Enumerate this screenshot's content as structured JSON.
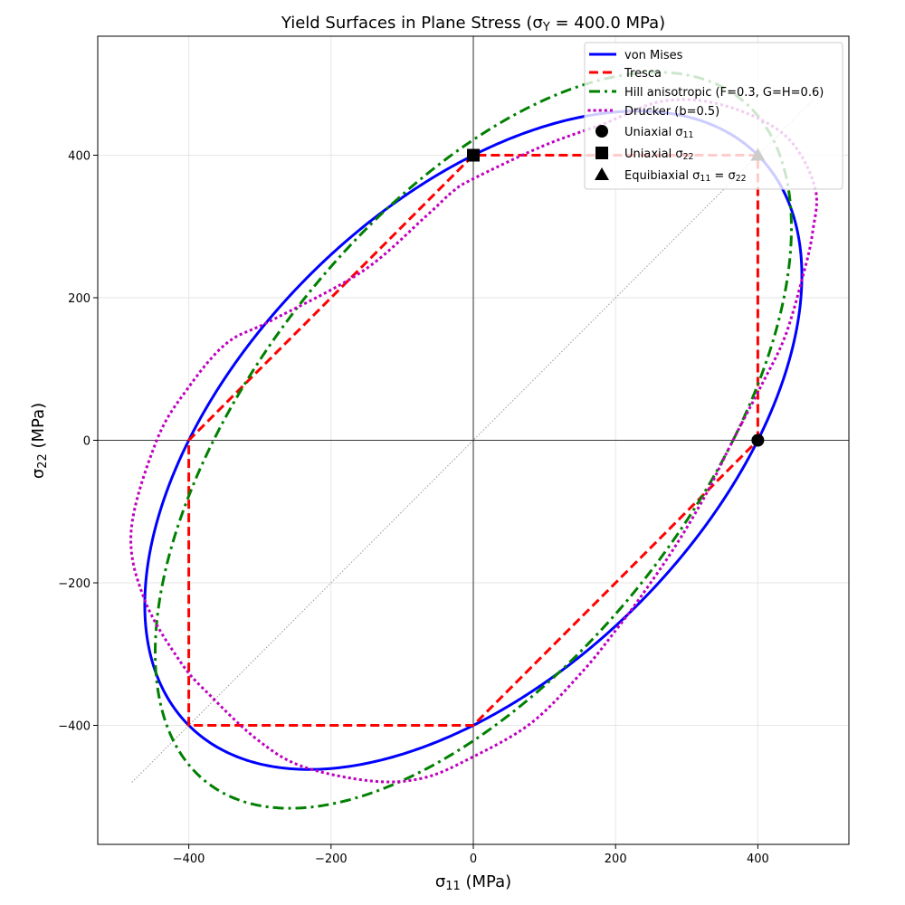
{
  "chart_data": {
    "type": "line",
    "title": [
      {
        "t": "Yield Surfaces in Plane Stress (σ"
      },
      {
        "t": "Y",
        "sub": true
      },
      {
        "t": " = 400.0 MPa)"
      }
    ],
    "xlabel": [
      {
        "t": "σ"
      },
      {
        "t": "11",
        "sub": true
      },
      {
        "t": " (MPa)"
      }
    ],
    "ylabel": [
      {
        "t": "σ"
      },
      {
        "t": "22",
        "sub": true
      },
      {
        "t": " (MPa)"
      }
    ],
    "xlim": [
      -528,
      528
    ],
    "ylim": [
      -567,
      567
    ],
    "xticks": [
      -400,
      -200,
      0,
      200,
      400
    ],
    "yticks": [
      -400,
      -200,
      0,
      200,
      400
    ],
    "xtick_labels": [
      "−400",
      "−200",
      "0",
      "200",
      "400"
    ],
    "ytick_labels": [
      "−400",
      "−200",
      "0",
      "200",
      "400"
    ],
    "grid": true,
    "legend_position": "top-right",
    "sigma_Y": 400.0,
    "reference_line": {
      "from": [
        -480,
        -480
      ],
      "to": [
        480,
        480
      ],
      "color": "#999999"
    },
    "series": [
      {
        "name": "von Mises",
        "color": "#0000ff",
        "style": "solid",
        "label": [
          {
            "t": "von Mises"
          }
        ],
        "criterion": "s11^2 - s11*s22 + s22^2 = sigma_Y^2"
      },
      {
        "name": "Tresca",
        "color": "#ff0000",
        "style": "dashed",
        "label": [
          {
            "t": "Tresca"
          }
        ],
        "points": [
          [
            400,
            0
          ],
          [
            400,
            400
          ],
          [
            0,
            400
          ],
          [
            -400,
            0
          ],
          [
            -400,
            -400
          ],
          [
            0,
            -400
          ],
          [
            400,
            0
          ]
        ]
      },
      {
        "name": "Hill anisotropic (F=0.3, G=H=0.6)",
        "color": "#008000",
        "style": "dashdot",
        "label": [
          {
            "t": "Hill anisotropic (F=0.3, G=H=0.6)"
          }
        ],
        "params": {
          "F": 0.3,
          "G": 0.6,
          "H": 0.6
        }
      },
      {
        "name": "Drucker (b=0.5)",
        "color": "#bf00bf",
        "style": "dotted",
        "label": [
          {
            "t": "Drucker (b=0.5)"
          }
        ],
        "points": [
          [
            378,
            25
          ],
          [
            407,
            81
          ],
          [
            438,
            145
          ],
          [
            463,
            229
          ],
          [
            477,
            292
          ],
          [
            480,
            356
          ],
          [
            438,
            428
          ],
          [
            352,
            470
          ],
          [
            267,
            476
          ],
          [
            183,
            444
          ],
          [
            98,
            413
          ],
          [
            0,
            367
          ],
          [
            -29,
            349
          ],
          [
            -67,
            314
          ],
          [
            -156,
            237
          ],
          [
            -284,
            168
          ],
          [
            -347,
            136
          ],
          [
            -402,
            72
          ],
          [
            -445,
            0
          ],
          [
            -481,
            -127
          ],
          [
            -462,
            -224
          ],
          [
            -411,
            -312
          ],
          [
            -369,
            -359
          ],
          [
            -305,
            -419
          ],
          [
            -242,
            -457
          ],
          [
            -144,
            -478
          ],
          [
            -71,
            -474
          ],
          [
            -4,
            -446
          ],
          [
            81,
            -397
          ],
          [
            153,
            -325
          ],
          [
            200,
            -267
          ],
          [
            238,
            -216
          ],
          [
            285,
            -147
          ],
          [
            327,
            -76
          ],
          [
            359,
            -12
          ],
          [
            378,
            25
          ]
        ]
      }
    ],
    "markers": [
      {
        "name": "Uniaxial σ11",
        "shape": "circle",
        "x": 400,
        "y": 0,
        "color": "#000000",
        "label": [
          {
            "t": "Uniaxial σ"
          },
          {
            "t": "11",
            "sub": true
          }
        ]
      },
      {
        "name": "Uniaxial σ22",
        "shape": "square",
        "x": 0,
        "y": 400,
        "color": "#000000",
        "label": [
          {
            "t": "Uniaxial σ"
          },
          {
            "t": "22",
            "sub": true
          }
        ]
      },
      {
        "name": "Equibiaxial σ11 = σ22",
        "shape": "triangle",
        "x": 400,
        "y": 400,
        "color": "#000000",
        "label": [
          {
            "t": "Equibiaxial σ"
          },
          {
            "t": "11",
            "sub": true
          },
          {
            "t": " = σ"
          },
          {
            "t": "22",
            "sub": true
          }
        ]
      }
    ]
  }
}
